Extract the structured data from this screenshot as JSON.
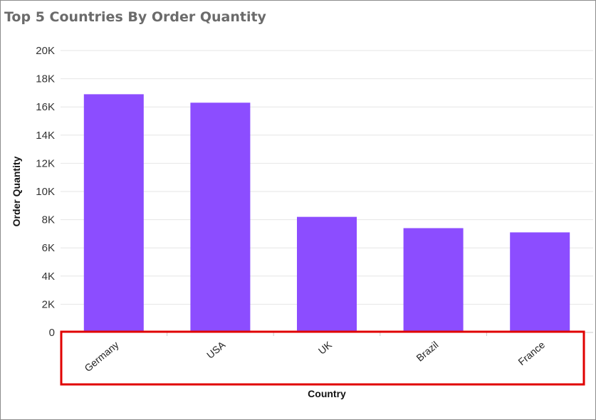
{
  "chart_data": {
    "type": "bar",
    "title": "Top 5 Countries By Order Quantity",
    "xlabel": "Country",
    "ylabel": "Order Quantity",
    "categories": [
      "Germany",
      "USA",
      "UK",
      "Brazil",
      "France"
    ],
    "values": [
      16900,
      16300,
      8200,
      7400,
      7100
    ],
    "ylim": [
      0,
      20000
    ],
    "yticks": [
      0,
      2000,
      4000,
      6000,
      8000,
      10000,
      12000,
      14000,
      16000,
      18000,
      20000
    ],
    "ytick_labels": [
      "0",
      "2K",
      "4K",
      "6K",
      "8K",
      "10K",
      "12K",
      "14K",
      "16K",
      "18K",
      "20K"
    ],
    "grid": true,
    "legend": "none",
    "colors": {
      "bar": "#8c4dff",
      "highlight_box": "#e00000",
      "gridline": "#e6e6e6",
      "title": "#6b6b6b"
    }
  }
}
